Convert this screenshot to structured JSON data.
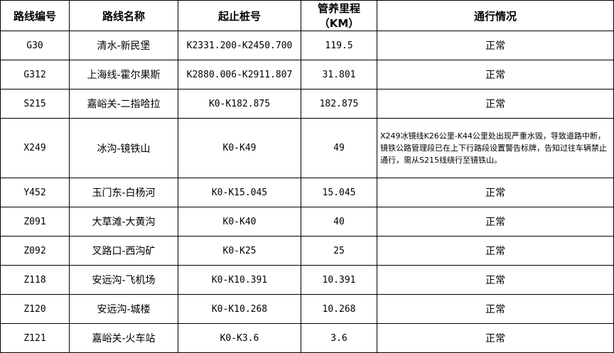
{
  "headers": [
    "路线编号",
    "路线名称",
    "起止桩号",
    "管养里程",
    "（KM）",
    "通行情况"
  ],
  "rows": [
    [
      "G30",
      "清水-新民堡",
      "K2331.200-K2450.700",
      "119.5",
      "正常"
    ],
    [
      "G312",
      "上海线-霍尔果斯",
      "K2880.006-K2911.807",
      "31.801",
      "正常"
    ],
    [
      "S215",
      "嘉峪关-二指哈拉",
      "K0-K182.875",
      "182.875",
      "正常"
    ],
    [
      "X249",
      "冰沟-镜铁山",
      "K0-K49",
      "49",
      "X249冰镜线K26公里-K44公里处出现严重水毁，导致道路中断，镜铁公路管理段已在上下行路段设置警告标牌，告知过往车辆禁止通行，需从S215线绕行至镜铁山。"
    ],
    [
      "Y452",
      "玉门东-白杨河",
      "K0-K15.045",
      "15.045",
      "正常"
    ],
    [
      "Z091",
      "大草滩-大黄沟",
      "K0-K40",
      "40",
      "正常"
    ],
    [
      "Z092",
      "叉路口-西沟矿",
      "K0-K25",
      "25",
      "正常"
    ],
    [
      "Z118",
      "安远沟-飞机场",
      "K0-K10.391",
      "10.391",
      "正常"
    ],
    [
      "Z120",
      "安远沟-城楼",
      "K0-K10.268",
      "10.268",
      "正常"
    ],
    [
      "Z121",
      "嘉峪关-火车站",
      "K0-K3.6",
      "3.6",
      "正常"
    ]
  ]
}
